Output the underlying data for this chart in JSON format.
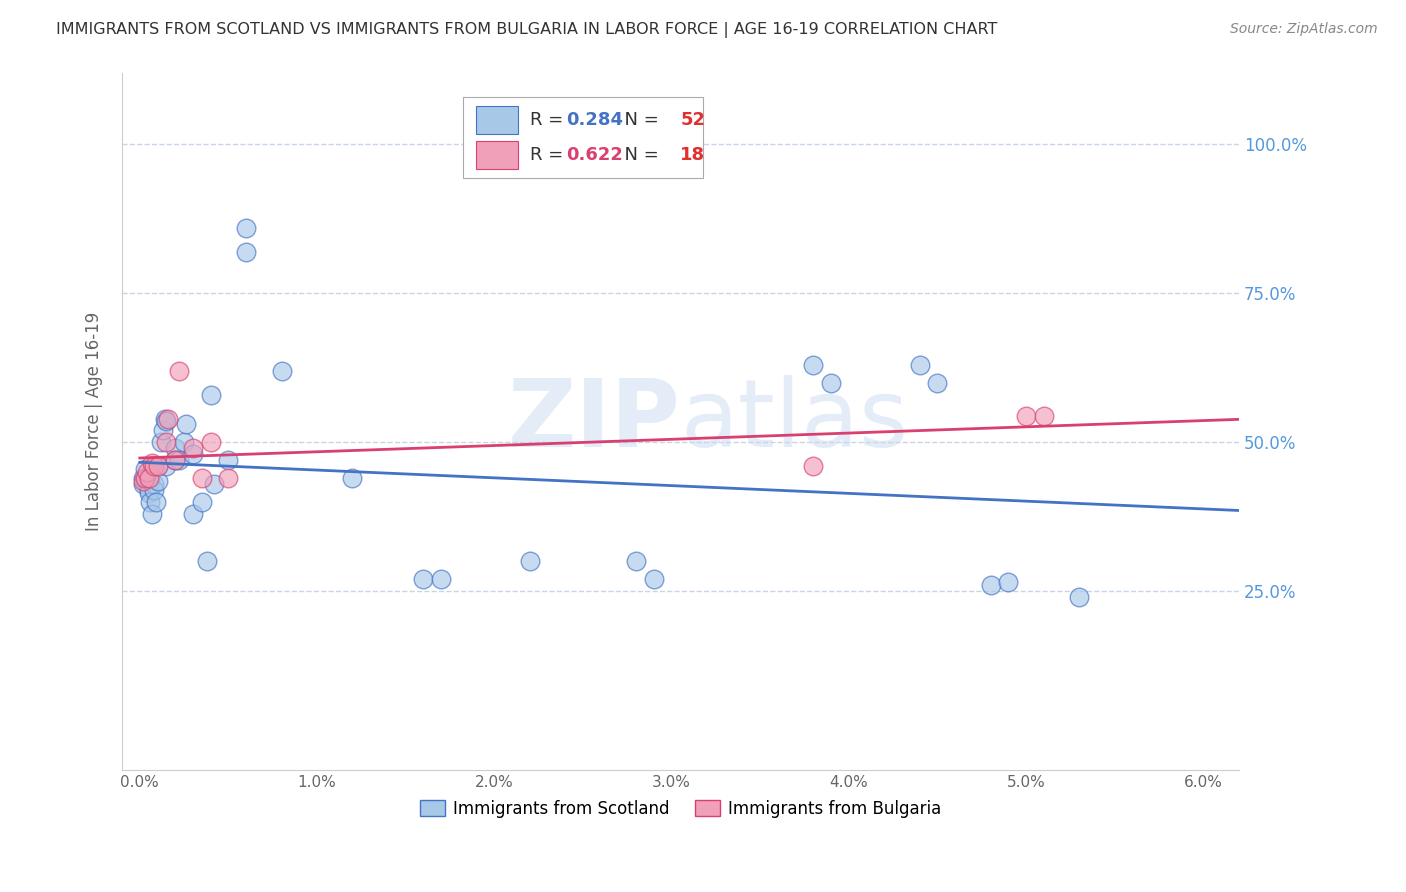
{
  "title": "IMMIGRANTS FROM SCOTLAND VS IMMIGRANTS FROM BULGARIA IN LABOR FORCE | AGE 16-19 CORRELATION CHART",
  "source": "Source: ZipAtlas.com",
  "ylabel": "In Labor Force | Age 16-19",
  "watermark": "ZIPAtlas",
  "xlim": [
    -0.001,
    0.062
  ],
  "ylim": [
    -0.05,
    1.12
  ],
  "scotland_color": "#a8c8e8",
  "bulgaria_color": "#f0a0b8",
  "scotland_line_color": "#4472c4",
  "bulgaria_line_color": "#d94070",
  "legend_scotland_R": "0.284",
  "legend_scotland_N": "52",
  "legend_bulgaria_R": "0.622",
  "legend_bulgaria_N": "18",
  "legend_R_color": "#333333",
  "legend_scotland_R_val_color": "#4472c4",
  "legend_bulgaria_R_val_color": "#d94070",
  "legend_N_color": "#333333",
  "legend_scotland_N_val_color": "#e03030",
  "legend_bulgaria_N_val_color": "#e03030",
  "background_color": "#ffffff",
  "grid_color": "#c8d4e8",
  "title_color": "#333333",
  "right_label_color": "#5599dd",
  "scotland_x": [
    0.0002,
    0.0002,
    0.0003,
    0.0003,
    0.0004,
    0.0004,
    0.0005,
    0.0005,
    0.0005,
    0.0005,
    0.0006,
    0.0006,
    0.0007,
    0.0007,
    0.0008,
    0.0008,
    0.0009,
    0.001,
    0.001,
    0.0012,
    0.0013,
    0.0014,
    0.0015,
    0.0015,
    0.002,
    0.002,
    0.0022,
    0.0025,
    0.0026,
    0.003,
    0.003,
    0.0035,
    0.0038,
    0.004,
    0.0042,
    0.005,
    0.006,
    0.006,
    0.008,
    0.012,
    0.016,
    0.017,
    0.022,
    0.028,
    0.029,
    0.038,
    0.039,
    0.044,
    0.045,
    0.048,
    0.049,
    0.053
  ],
  "scotland_y": [
    0.44,
    0.43,
    0.455,
    0.435,
    0.44,
    0.435,
    0.435,
    0.43,
    0.42,
    0.415,
    0.44,
    0.4,
    0.455,
    0.38,
    0.43,
    0.42,
    0.4,
    0.46,
    0.435,
    0.5,
    0.52,
    0.54,
    0.535,
    0.46,
    0.49,
    0.47,
    0.47,
    0.5,
    0.53,
    0.48,
    0.38,
    0.4,
    0.3,
    0.58,
    0.43,
    0.47,
    0.86,
    0.82,
    0.62,
    0.44,
    0.27,
    0.27,
    0.3,
    0.3,
    0.27,
    0.63,
    0.6,
    0.63,
    0.6,
    0.26,
    0.265,
    0.24
  ],
  "bulgaria_x": [
    0.0002,
    0.0003,
    0.0004,
    0.0005,
    0.0007,
    0.0008,
    0.001,
    0.0015,
    0.0016,
    0.002,
    0.0022,
    0.003,
    0.0035,
    0.004,
    0.005,
    0.038,
    0.05,
    0.051
  ],
  "bulgaria_y": [
    0.435,
    0.44,
    0.45,
    0.44,
    0.465,
    0.46,
    0.46,
    0.5,
    0.54,
    0.47,
    0.62,
    0.49,
    0.44,
    0.5,
    0.44,
    0.46,
    0.545,
    0.545
  ]
}
